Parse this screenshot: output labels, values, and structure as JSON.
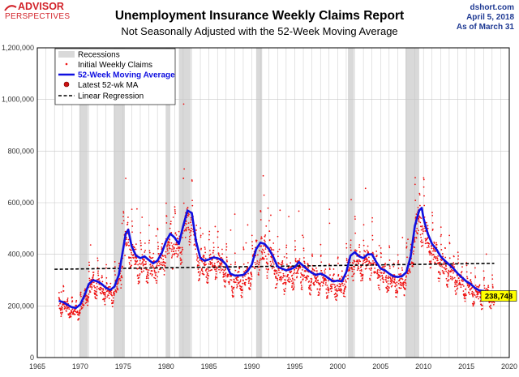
{
  "branding": {
    "logo_line1": "ADVISOR",
    "logo_line2": "PERSPECTIVES",
    "source": "dshort.com",
    "date_line": "April 5, 2018",
    "asof_line": "As of March 31"
  },
  "colors": {
    "logo_red": "#d2232a",
    "blue_text": "#1f3a93",
    "ma_line": "#1010e0",
    "points": "#ee1111",
    "recession": "#d9d9d9",
    "callout": "#ffff00"
  },
  "chart_data": {
    "type": "scatter",
    "title": "Unemployment Insurance Weekly Claims Report",
    "subtitle": "Not Seasonally Adjusted with the 52-Week Moving Average",
    "xlim": [
      1965,
      2020
    ],
    "ylim": [
      0,
      1200000
    ],
    "x_ticks": [
      1965,
      1970,
      1975,
      1980,
      1985,
      1990,
      1995,
      2000,
      2005,
      2010,
      2015,
      2020
    ],
    "y_ticks": [
      0,
      200000,
      400000,
      600000,
      800000,
      1000000,
      1200000
    ],
    "x_tick_labels": [
      "1965",
      "1970",
      "1975",
      "1980",
      "1985",
      "1990",
      "1995",
      "2000",
      "2005",
      "2010",
      "2015",
      "2020"
    ],
    "y_tick_labels": [
      "0",
      "200,000",
      "400,000",
      "600,000",
      "800,000",
      "1,000,000",
      "1,200,000"
    ],
    "grid": true,
    "legend_position": "top-left",
    "legend": {
      "recessions": "Recessions",
      "initial": "Initial Weekly Claims",
      "ma": "52-Week Moving Average",
      "latest": "Latest 52-wk MA",
      "regression": "Linear Regression"
    },
    "recessions": [
      [
        1969.9,
        1970.9
      ],
      [
        1973.9,
        1975.2
      ],
      [
        1980.0,
        1980.5
      ],
      [
        1981.5,
        1982.9
      ],
      [
        1990.5,
        1991.2
      ],
      [
        2001.2,
        2001.9
      ],
      [
        2007.9,
        2009.5
      ]
    ],
    "moving_average": {
      "x": [
        1967.5,
        1968.0,
        1968.5,
        1969.0,
        1969.5,
        1970.0,
        1970.5,
        1971.0,
        1971.5,
        1972.0,
        1972.5,
        1973.0,
        1973.5,
        1974.0,
        1974.5,
        1975.0,
        1975.3,
        1975.6,
        1976.0,
        1976.5,
        1977.0,
        1977.5,
        1978.0,
        1978.5,
        1979.0,
        1979.5,
        1980.0,
        1980.5,
        1981.0,
        1981.5,
        1982.0,
        1982.5,
        1983.0,
        1983.5,
        1984.0,
        1984.5,
        1985.0,
        1985.5,
        1986.0,
        1986.5,
        1987.0,
        1987.5,
        1988.0,
        1988.5,
        1989.0,
        1989.5,
        1990.0,
        1990.5,
        1991.0,
        1991.5,
        1992.0,
        1992.5,
        1993.0,
        1993.5,
        1994.0,
        1994.5,
        1995.0,
        1995.5,
        1996.0,
        1996.5,
        1997.0,
        1997.5,
        1998.0,
        1998.5,
        1999.0,
        1999.5,
        2000.0,
        2000.5,
        2001.0,
        2001.5,
        2002.0,
        2002.5,
        2003.0,
        2003.5,
        2004.0,
        2004.5,
        2005.0,
        2005.5,
        2006.0,
        2006.5,
        2007.0,
        2007.5,
        2008.0,
        2008.5,
        2009.0,
        2009.5,
        2009.8,
        2010.0,
        2010.5,
        2011.0,
        2011.5,
        2012.0,
        2012.5,
        2013.0,
        2013.5,
        2014.0,
        2014.5,
        2015.0,
        2015.5,
        2016.0,
        2016.5,
        2017.0,
        2017.5,
        2018.0,
        2018.25
      ],
      "y": [
        220000,
        215000,
        205000,
        195000,
        192000,
        205000,
        240000,
        285000,
        300000,
        295000,
        285000,
        270000,
        262000,
        275000,
        320000,
        420000,
        480000,
        495000,
        430000,
        395000,
        385000,
        392000,
        378000,
        365000,
        375000,
        405000,
        450000,
        480000,
        465000,
        440000,
        510000,
        570000,
        560000,
        450000,
        385000,
        375000,
        380000,
        388000,
        385000,
        378000,
        360000,
        325000,
        318000,
        318000,
        320000,
        335000,
        360000,
        420000,
        445000,
        440000,
        420000,
        390000,
        352000,
        345000,
        338000,
        342000,
        350000,
        370000,
        355000,
        340000,
        328000,
        320000,
        325000,
        318000,
        305000,
        295000,
        298000,
        295000,
        330000,
        395000,
        408000,
        392000,
        385000,
        400000,
        400000,
        370000,
        345000,
        338000,
        325000,
        315000,
        312000,
        315000,
        330000,
        390000,
        510000,
        570000,
        580000,
        540000,
        480000,
        440000,
        420000,
        392000,
        375000,
        360000,
        345000,
        325000,
        310000,
        295000,
        285000,
        270000,
        260000,
        258000,
        255000,
        245000,
        238748
      ]
    },
    "regression": {
      "x": [
        1967,
        2018.25
      ],
      "y": [
        342000,
        365000
      ]
    },
    "latest_ma": {
      "x": 2018.25,
      "y": 238748,
      "label": "238,748"
    }
  }
}
